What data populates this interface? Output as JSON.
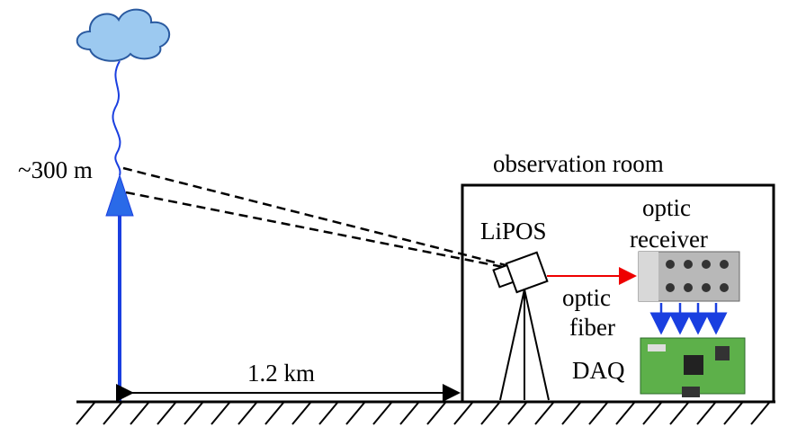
{
  "height_label": "~300 m",
  "room_label": "observation room",
  "lipos_label": "LiPOS",
  "receiver_label": [
    "optic",
    "receiver"
  ],
  "fiber_label": [
    "optic",
    "fiber"
  ],
  "daq_label": "DAQ",
  "distance_label": "1.2 km"
}
